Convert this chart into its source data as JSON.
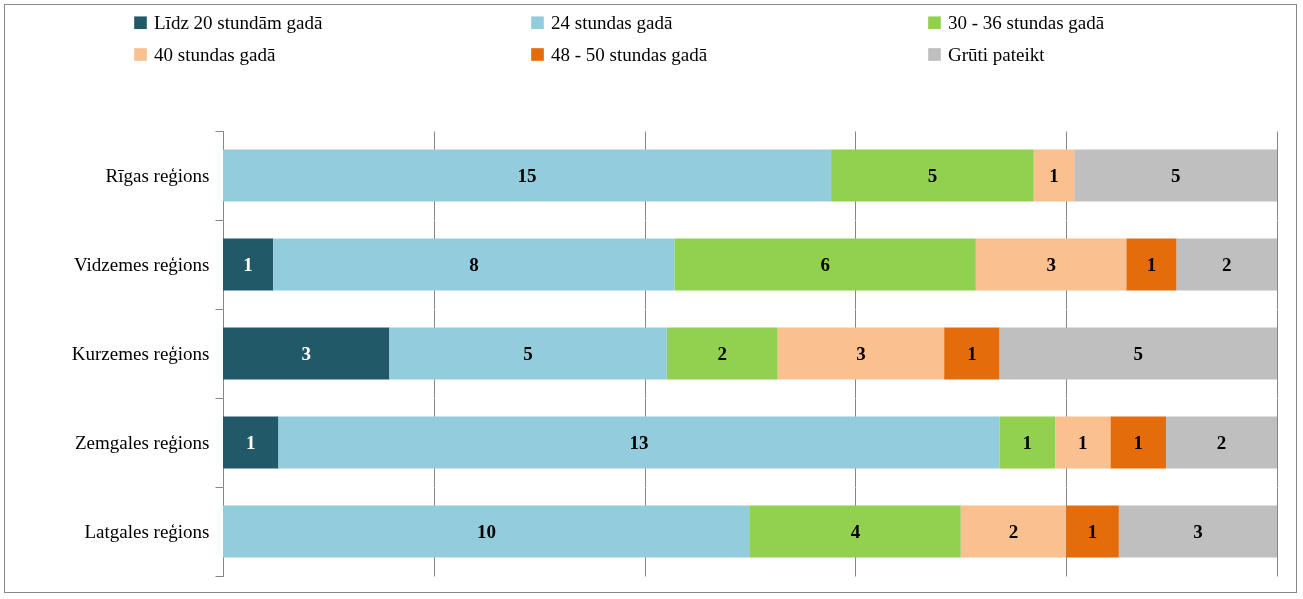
{
  "chart_data": [
    {
      "type": "bar",
      "orientation": "horizontal",
      "stacked": true,
      "categories": [
        "Rīgas reģions"
      ],
      "xlim": [
        0,
        26
      ],
      "xticks": [
        {
          "value": 0,
          "label": null
        },
        {
          "value": 5.2,
          "label": null
        },
        {
          "value": 10.4,
          "label": null
        },
        {
          "value": 15.6,
          "label": null
        },
        {
          "value": 20.8,
          "label": null
        },
        {
          "value": 26,
          "label": null
        }
      ],
      "series": [
        {
          "name": "Līdz 20 stundām gadā",
          "color": "#215968",
          "values": [
            null
          ]
        },
        {
          "name": "24 stundas gadā",
          "color": "#93cddd",
          "values": [
            15
          ]
        },
        {
          "name": "30 - 36 stundas gadā",
          "color": "#92d050",
          "values": [
            5
          ]
        },
        {
          "name": "40 stundas gadā",
          "color": "#fac090",
          "values": [
            1
          ]
        },
        {
          "name": "48 - 50 stundas gadā",
          "color": "#e46c0a",
          "values": [
            null
          ]
        },
        {
          "name": "Grūti pateikt",
          "color": "#bfbfbf",
          "values": [
            5
          ]
        }
      ],
      "grid": "x",
      "tick_labels": "y",
      "data_labels": true,
      "legend": "top"
    },
    {
      "type": "bar",
      "orientation": "horizontal",
      "stacked": true,
      "categories": [
        "Vidzemes reģions"
      ],
      "xlim": [
        0,
        21
      ],
      "xticks": [
        {
          "value": 0,
          "label": null
        },
        {
          "value": 4.2,
          "label": null
        },
        {
          "value": 8.4,
          "label": null
        },
        {
          "value": 12.6,
          "label": null
        },
        {
          "value": 16.8,
          "label": null
        },
        {
          "value": 21,
          "label": null
        }
      ],
      "series": [
        {
          "color": "#215968",
          "values": [
            1
          ]
        },
        {
          "color": "#93cddd",
          "values": [
            8
          ]
        },
        {
          "color": "#92d050",
          "values": [
            6
          ]
        },
        {
          "color": "#fac090",
          "values": [
            3
          ]
        },
        {
          "color": "#e46c0a",
          "values": [
            1
          ]
        },
        {
          "color": "#bfbfbf",
          "values": [
            2
          ]
        }
      ],
      "grid": "x",
      "tick_labels": "y",
      "data_labels": true
    },
    {
      "type": "bar",
      "orientation": "horizontal",
      "stacked": true,
      "categories": [
        "Kurzemes reģions"
      ],
      "xlim": [
        0,
        19
      ],
      "xticks": [
        {
          "value": 0,
          "label": null
        },
        {
          "value": 3.8,
          "label": null
        },
        {
          "value": 7.6,
          "label": null
        },
        {
          "value": 11.4,
          "label": null
        },
        {
          "value": 15.2,
          "label": null
        },
        {
          "value": 19,
          "label": null
        }
      ],
      "series": [
        {
          "color": "#215968",
          "values": [
            3
          ]
        },
        {
          "color": "#93cddd",
          "values": [
            5
          ]
        },
        {
          "color": "#92d050",
          "values": [
            2
          ]
        },
        {
          "color": "#fac090",
          "values": [
            3
          ]
        },
        {
          "color": "#e46c0a",
          "values": [
            1
          ]
        },
        {
          "color": "#bfbfbf",
          "values": [
            5
          ]
        }
      ],
      "grid": "x",
      "tick_labels": "y",
      "data_labels": true
    },
    {
      "type": "bar",
      "orientation": "horizontal",
      "stacked": true,
      "categories": [
        "Zemgales reģions"
      ],
      "xlim": [
        0,
        19
      ],
      "xticks": [
        {
          "value": 0,
          "label": null
        },
        {
          "value": 3.8,
          "label": null
        },
        {
          "value": 7.6,
          "label": null
        },
        {
          "value": 11.4,
          "label": null
        },
        {
          "value": 15.2,
          "label": null
        },
        {
          "value": 19,
          "label": null
        }
      ],
      "series": [
        {
          "color": "#215968",
          "values": [
            1
          ]
        },
        {
          "color": "#93cddd",
          "values": [
            13
          ]
        },
        {
          "color": "#92d050",
          "values": [
            1
          ]
        },
        {
          "color": "#fac090",
          "values": [
            1
          ]
        },
        {
          "color": "#e46c0a",
          "values": [
            1
          ]
        },
        {
          "color": "#bfbfbf",
          "values": [
            2
          ]
        }
      ],
      "grid": "x",
      "tick_labels": "y",
      "data_labels": true
    },
    {
      "type": "bar",
      "orientation": "horizontal",
      "stacked": true,
      "categories": [
        "Latgales reģions"
      ],
      "xlim": [
        0,
        20
      ],
      "xticks": [
        {
          "value": 0,
          "label": null
        },
        {
          "value": 4,
          "label": null
        },
        {
          "value": 8,
          "label": null
        },
        {
          "value": 12,
          "label": null
        },
        {
          "value": 16,
          "label": null
        },
        {
          "value": 20,
          "label": null
        }
      ],
      "series": [
        {
          "color": "#215968",
          "values": [
            null
          ]
        },
        {
          "color": "#93cddd",
          "values": [
            10
          ]
        },
        {
          "color": "#92d050",
          "values": [
            4
          ]
        },
        {
          "color": "#fac090",
          "values": [
            2
          ]
        },
        {
          "color": "#e46c0a",
          "values": [
            1
          ]
        },
        {
          "color": "#bfbfbf",
          "values": [
            3
          ]
        }
      ],
      "grid": "x",
      "tick_labels": "y",
      "data_labels": true
    }
  ]
}
